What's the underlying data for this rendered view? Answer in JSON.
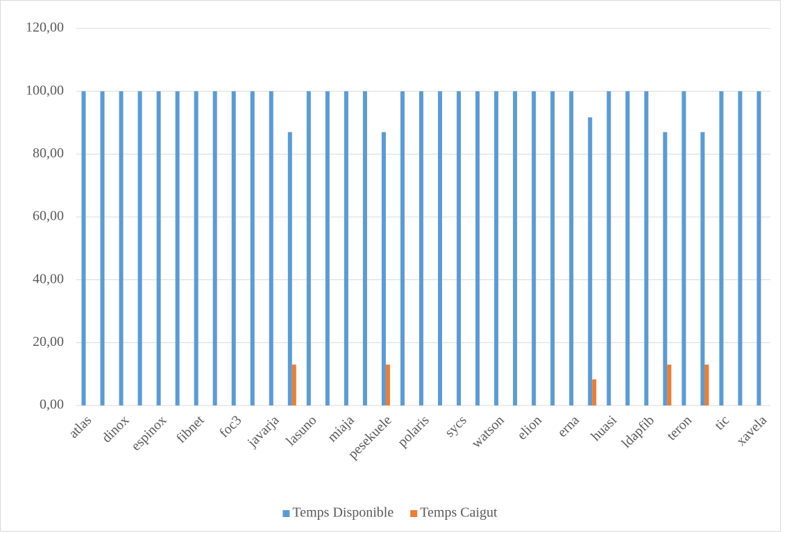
{
  "chart_data": {
    "type": "bar",
    "categories": [
      "atlas",
      null,
      "dinox",
      null,
      "espinox",
      null,
      "fibnet",
      null,
      "foc3",
      null,
      "javarja",
      null,
      "lasuno",
      null,
      "miaja",
      null,
      "pesekuele",
      null,
      "polaris",
      null,
      "sycs",
      null,
      "watson",
      null,
      "elion",
      null,
      "erna",
      null,
      "huasi",
      null,
      "ldapfib",
      null,
      "teron",
      null,
      "tic",
      null,
      "xavela"
    ],
    "series": [
      {
        "name": "Temps Disponible",
        "color": "#5b9bd5",
        "values": [
          100,
          100,
          100,
          100,
          100,
          100,
          100,
          100,
          100,
          100,
          100,
          87,
          100,
          100,
          100,
          100,
          87,
          100,
          100,
          100,
          100,
          100,
          100,
          100,
          100,
          100,
          100,
          91.7,
          100,
          100,
          100,
          87,
          100,
          87,
          100,
          100,
          100
        ]
      },
      {
        "name": "Temps Caigut",
        "color": "#ed7d31",
        "values": [
          0,
          0,
          0,
          0,
          0,
          0,
          0,
          0,
          0,
          0,
          0,
          13,
          0,
          0,
          0,
          0,
          13,
          0,
          0,
          0,
          0,
          0,
          0,
          0,
          0,
          0,
          0,
          8.3,
          0,
          0,
          0,
          13,
          0,
          13,
          0,
          0,
          0
        ]
      }
    ],
    "ylim": [
      0,
      120
    ],
    "yticks": [
      {
        "value": 0,
        "label": "0,00"
      },
      {
        "value": 20,
        "label": "20,00"
      },
      {
        "value": 40,
        "label": "40,00"
      },
      {
        "value": 60,
        "label": "60,00"
      },
      {
        "value": 80,
        "label": "80,00"
      },
      {
        "value": 100,
        "label": "100,00"
      },
      {
        "value": 120,
        "label": "120,00"
      }
    ],
    "grid": true,
    "legend": "bottom"
  }
}
